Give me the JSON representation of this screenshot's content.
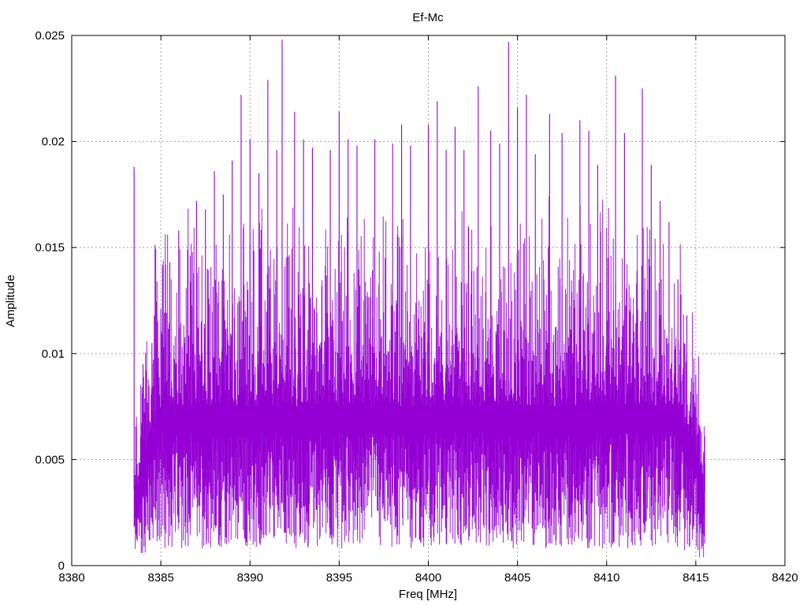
{
  "chart_data": {
    "type": "line",
    "title": "Ef-Mc",
    "xlabel": "Freq [MHz]",
    "ylabel": "Amplitude",
    "xlim": [
      8380,
      8420
    ],
    "ylim": [
      0,
      0.025
    ],
    "x_ticks": [
      "8380",
      "8385",
      "8390",
      "8395",
      "8400",
      "8405",
      "8410",
      "8415",
      "8420"
    ],
    "y_ticks": [
      "0",
      "0.005",
      "0.01",
      "0.015",
      "0.02",
      "0.025"
    ],
    "grid": true,
    "series": [
      {
        "color": "#9400d3",
        "x_start": 8383.5,
        "x_end": 8415.5,
        "peaks": [
          [
            8383.5,
            0.0188
          ],
          [
            8384.0,
            0.0095
          ],
          [
            8384.5,
            0.0105
          ],
          [
            8385.0,
            0.0121
          ],
          [
            8385.5,
            0.0143
          ],
          [
            8386.0,
            0.0158
          ],
          [
            8386.5,
            0.0149
          ],
          [
            8387.0,
            0.0172
          ],
          [
            8387.5,
            0.0168
          ],
          [
            8388.0,
            0.0186
          ],
          [
            8388.5,
            0.0175
          ],
          [
            8389.0,
            0.0191
          ],
          [
            8389.5,
            0.0222
          ],
          [
            8390.0,
            0.0201
          ],
          [
            8390.5,
            0.0185
          ],
          [
            8391.0,
            0.0229
          ],
          [
            8391.5,
            0.0196
          ],
          [
            8391.8,
            0.0248
          ],
          [
            8392.5,
            0.0214
          ],
          [
            8393.0,
            0.0201
          ],
          [
            8393.5,
            0.0197
          ],
          [
            8394.5,
            0.0196
          ],
          [
            8395.0,
            0.0214
          ],
          [
            8395.5,
            0.0201
          ],
          [
            8396.0,
            0.0198
          ],
          [
            8397.0,
            0.0201
          ],
          [
            8398.0,
            0.0199
          ],
          [
            8398.5,
            0.0208
          ],
          [
            8399.0,
            0.0198
          ],
          [
            8400.0,
            0.0208
          ],
          [
            8400.5,
            0.0219
          ],
          [
            8401.0,
            0.0196
          ],
          [
            8401.5,
            0.0207
          ],
          [
            8402.0,
            0.0196
          ],
          [
            8402.8,
            0.0226
          ],
          [
            8403.5,
            0.0205
          ],
          [
            8404.0,
            0.0199
          ],
          [
            8404.5,
            0.0247
          ],
          [
            8405.0,
            0.0216
          ],
          [
            8405.5,
            0.0222
          ],
          [
            8406.0,
            0.0194
          ],
          [
            8406.8,
            0.0213
          ],
          [
            8407.5,
            0.0204
          ],
          [
            8408.5,
            0.021
          ],
          [
            8409.0,
            0.0205
          ],
          [
            8409.5,
            0.0189
          ],
          [
            8410.5,
            0.0231
          ],
          [
            8411.0,
            0.0204
          ],
          [
            8412.0,
            0.0225
          ],
          [
            8412.5,
            0.0189
          ],
          [
            8413.0,
            0.0172
          ],
          [
            8413.5,
            0.0162
          ],
          [
            8414.0,
            0.0135
          ],
          [
            8414.5,
            0.0118
          ],
          [
            8415.0,
            0.009
          ],
          [
            8415.5,
            0.0061
          ]
        ]
      }
    ]
  }
}
